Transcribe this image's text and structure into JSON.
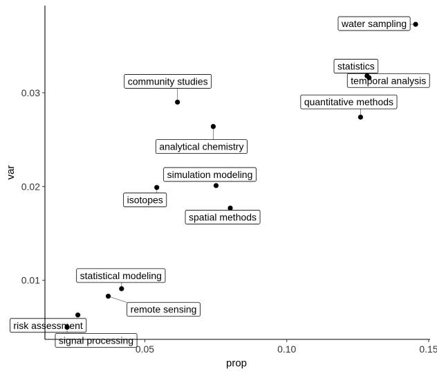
{
  "chart_data": {
    "type": "scatter",
    "xlabel": "prop",
    "ylabel": "var",
    "xlim": [
      0.0148,
      0.1505
    ],
    "ylim": [
      0.0037,
      0.0393
    ],
    "x_ticks": [
      {
        "value": 0.05,
        "label": "0.05"
      },
      {
        "value": 0.1,
        "label": "0.10"
      },
      {
        "value": 0.15,
        "label": "0.15"
      }
    ],
    "y_ticks": [
      {
        "value": 0.01,
        "label": "0.01"
      },
      {
        "value": 0.02,
        "label": "0.02"
      },
      {
        "value": 0.03,
        "label": "0.03"
      }
    ],
    "grid": false,
    "legend": "none",
    "colors": {
      "point": "#000000",
      "label_fill": "#ffffff",
      "label_border": "#000000"
    },
    "points": [
      {
        "label": "water sampling",
        "x": 0.1454,
        "y": 0.0373
      },
      {
        "label": "statistics",
        "x": 0.1283,
        "y": 0.0318
      },
      {
        "label": "temporal analysis",
        "x": 0.129,
        "y": 0.0316
      },
      {
        "label": "quantitative methods",
        "x": 0.126,
        "y": 0.0274
      },
      {
        "label": "community studies",
        "x": 0.0615,
        "y": 0.029
      },
      {
        "label": "analytical chemistry",
        "x": 0.0741,
        "y": 0.0264
      },
      {
        "label": "simulation modeling",
        "x": 0.0751,
        "y": 0.0201
      },
      {
        "label": "isotopes",
        "x": 0.0542,
        "y": 0.0199
      },
      {
        "label": "spatial methods",
        "x": 0.0801,
        "y": 0.0177
      },
      {
        "label": "statistical modeling",
        "x": 0.0418,
        "y": 0.0091
      },
      {
        "label": "remote sensing",
        "x": 0.0371,
        "y": 0.0083
      },
      {
        "label": "risk assessment",
        "x": 0.0264,
        "y": 0.0063
      },
      {
        "label": "signal processing",
        "x": 0.0226,
        "y": 0.005
      }
    ]
  }
}
